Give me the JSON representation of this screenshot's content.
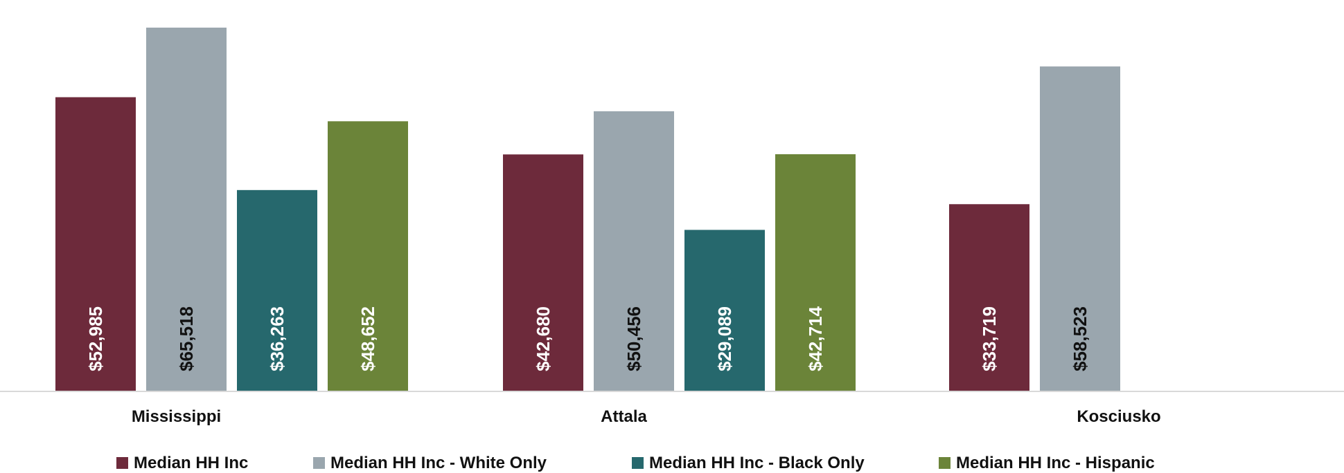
{
  "chart_data": {
    "type": "bar",
    "categories": [
      "Mississippi",
      "Attala",
      "Kosciusko"
    ],
    "series": [
      {
        "name": "Median HH Inc",
        "color": "#6d2a3b",
        "label_color": "#ffffff",
        "values": [
          52985,
          42680,
          33719
        ],
        "labels": [
          "$52,985",
          "$42,680",
          "$33,719"
        ]
      },
      {
        "name": "Median HH Inc - White Only",
        "color": "#9aa6ae",
        "label_color": "#111111",
        "values": [
          65518,
          50456,
          58523
        ],
        "labels": [
          "$65,518",
          "$50,456",
          "$58,523"
        ]
      },
      {
        "name": "Median HH Inc - Black Only",
        "color": "#26686d",
        "label_color": "#ffffff",
        "values": [
          36263,
          29089,
          null
        ],
        "labels": [
          "$36,263",
          "$29,089",
          ""
        ]
      },
      {
        "name": "Median HH Inc - Hispanic",
        "color": "#6b8439",
        "label_color": "#ffffff",
        "values": [
          48652,
          42714,
          null
        ],
        "labels": [
          "$48,652",
          "$42,714",
          ""
        ]
      }
    ],
    "title": "",
    "xlabel": "",
    "ylabel": "",
    "ylim": [
      0,
      68000
    ],
    "grid": false,
    "legend": "bottom"
  }
}
